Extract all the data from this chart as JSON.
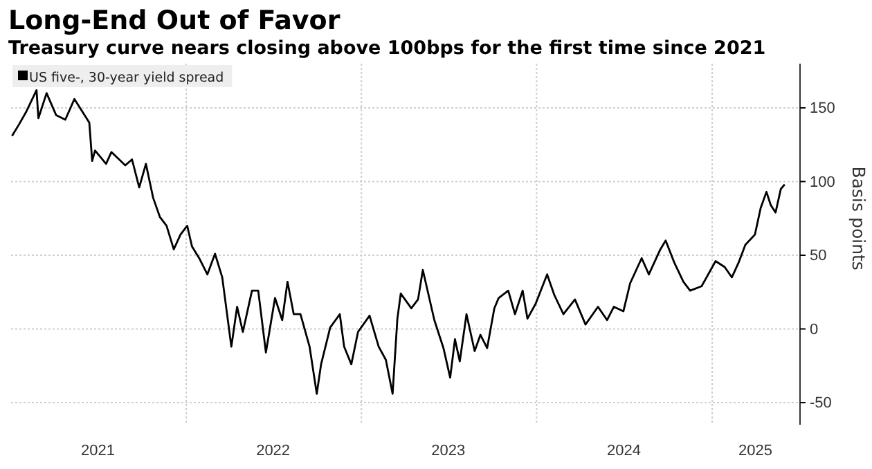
{
  "chart_data": {
    "type": "line",
    "title": "Long-End Out of Favor",
    "subtitle": "Treasury curve nears closing above 100bps for the first time since 2021",
    "ylabel": "Basis points",
    "legend": "top left",
    "grid": true,
    "line_style": "solid",
    "marker": "none",
    "xlim": [
      "2021-01-01",
      "2025-07-03"
    ],
    "xticks": [
      {
        "value": "2021-07-01",
        "label": "2021"
      },
      {
        "value": "2022-01-01",
        "label": null
      },
      {
        "value": "2022-07-01",
        "label": "2022"
      },
      {
        "value": "2023-01-01",
        "label": null
      },
      {
        "value": "2023-07-01",
        "label": "2023"
      },
      {
        "value": "2024-01-01",
        "label": null
      },
      {
        "value": "2024-07-01",
        "label": "2024"
      },
      {
        "value": "2025-01-01",
        "label": null
      },
      {
        "value": "2025-04-01",
        "label": "2025"
      }
    ],
    "ylim": [
      -65,
      180
    ],
    "yticks": [
      -50,
      0,
      50,
      100,
      150
    ],
    "x": [
      "2021-01-03",
      "2021-01-18",
      "2021-02-01",
      "2021-02-23",
      "2021-02-27",
      "2021-03-16",
      "2021-04-05",
      "2021-04-24",
      "2021-05-13",
      "2021-06-13",
      "2021-06-19",
      "2021-06-25",
      "2021-07-18",
      "2021-07-29",
      "2021-08-27",
      "2021-09-10",
      "2021-09-25",
      "2021-10-09",
      "2021-10-24",
      "2021-11-07",
      "2021-11-21",
      "2021-12-06",
      "2021-12-20",
      "2022-01-03",
      "2022-01-13",
      "2022-01-28",
      "2022-02-14",
      "2022-03-02",
      "2022-03-17",
      "2022-04-05",
      "2022-04-17",
      "2022-04-29",
      "2022-05-18",
      "2022-05-31",
      "2022-06-16",
      "2022-07-05",
      "2022-07-20",
      "2022-07-31",
      "2022-08-13",
      "2022-08-27",
      "2022-09-15",
      "2022-09-30",
      "2022-10-09",
      "2022-10-28",
      "2022-11-17",
      "2022-11-26",
      "2022-12-11",
      "2022-12-25",
      "2023-01-18",
      "2023-02-06",
      "2023-02-21",
      "2023-03-07",
      "2023-03-17",
      "2023-03-24",
      "2023-04-15",
      "2023-04-29",
      "2023-05-09",
      "2023-06-02",
      "2023-06-21",
      "2023-07-05",
      "2023-07-15",
      "2023-07-25",
      "2023-08-08",
      "2023-08-25",
      "2023-09-06",
      "2023-09-20",
      "2023-10-05",
      "2023-10-14",
      "2023-11-03",
      "2023-11-17",
      "2023-12-03",
      "2023-12-13",
      "2023-12-30",
      "2024-01-23",
      "2024-02-07",
      "2024-02-26",
      "2024-03-21",
      "2024-04-12",
      "2024-05-08",
      "2024-05-27",
      "2024-06-10",
      "2024-06-30",
      "2024-07-14",
      "2024-08-07",
      "2024-08-22",
      "2024-09-15",
      "2024-09-26",
      "2024-10-14",
      "2024-11-02",
      "2024-11-16",
      "2024-12-10",
      "2025-01-08",
      "2025-01-27",
      "2025-02-11",
      "2025-02-25",
      "2025-03-11",
      "2025-03-31",
      "2025-04-12",
      "2025-04-24",
      "2025-05-03",
      "2025-05-13",
      "2025-05-24",
      "2025-06-01"
    ],
    "series": [
      {
        "name": "US five-, 30-year yield spread",
        "color": "#000000",
        "values": [
          131,
          139,
          147,
          162,
          143,
          160,
          145,
          142,
          156,
          140,
          114,
          121,
          112,
          120,
          111,
          115,
          96,
          112,
          89,
          76,
          70,
          54,
          64,
          70,
          56,
          48,
          37,
          51,
          35,
          -12,
          15,
          -2,
          26,
          26,
          -16,
          21,
          6,
          32,
          10,
          10,
          -12,
          -44,
          -24,
          1,
          10,
          -12,
          -24,
          -2,
          9,
          -12,
          -21,
          -44,
          7,
          24,
          14,
          20,
          40,
          6,
          -13,
          -33,
          -7,
          -22,
          10,
          -15,
          -4,
          -13,
          14,
          21,
          26,
          10,
          26,
          7,
          17,
          37,
          23,
          10,
          20,
          3,
          15,
          6,
          15,
          12,
          31,
          48,
          37,
          54,
          60,
          45,
          32,
          26,
          29,
          46,
          42,
          35,
          45,
          57,
          64,
          82,
          93,
          84,
          79,
          95,
          98
        ]
      }
    ]
  }
}
